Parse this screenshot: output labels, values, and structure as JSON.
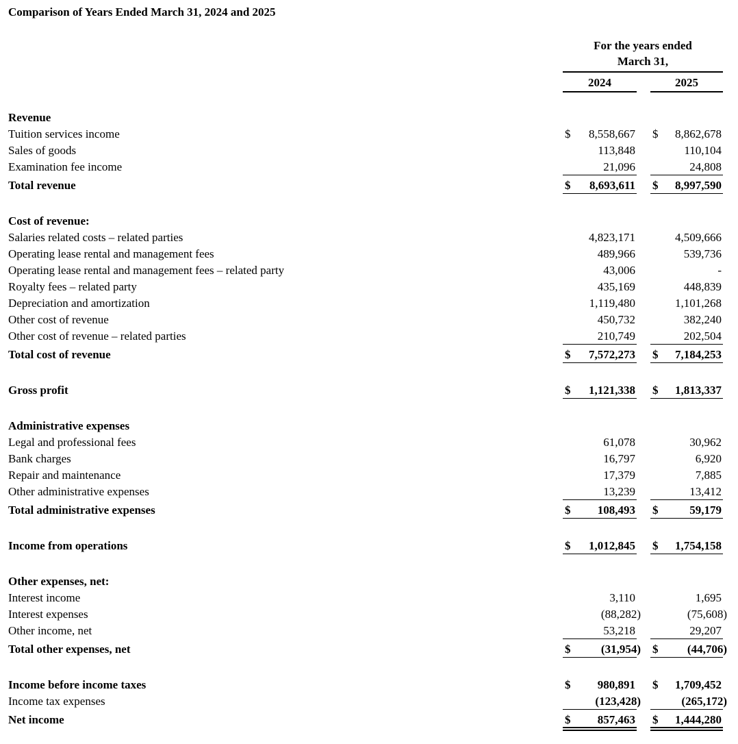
{
  "title": "Comparison of Years Ended March 31, 2024 and 2025",
  "header": {
    "period": [
      "For the years ended",
      "March 31,"
    ],
    "years": [
      "2024",
      "2025"
    ]
  },
  "currency": "$",
  "sections": [
    {
      "heading": "Revenue",
      "rows": [
        {
          "label": "Tuition services income",
          "values": [
            "8,558,667",
            "8,862,678"
          ],
          "currency": [
            true,
            true
          ]
        },
        {
          "label": "Sales of goods",
          "values": [
            "113,848",
            "110,104"
          ]
        },
        {
          "label": "Examination fee income",
          "values": [
            "21,096",
            "24,808"
          ],
          "underline": "single"
        },
        {
          "label": "Total revenue",
          "values": [
            "8,693,611",
            "8,997,590"
          ],
          "bold": true,
          "currency": [
            true,
            true
          ],
          "underline": "single"
        }
      ]
    },
    {
      "heading": "Cost of revenue:",
      "rows": [
        {
          "label": "Salaries related costs – related parties",
          "values": [
            "4,823,171",
            "4,509,666"
          ]
        },
        {
          "label": "Operating lease rental and management fees",
          "values": [
            "489,966",
            "539,736"
          ]
        },
        {
          "label": "Operating lease rental and management fees – related party",
          "values": [
            "43,006",
            "-"
          ]
        },
        {
          "label": "Royalty fees – related party",
          "values": [
            "435,169",
            "448,839"
          ]
        },
        {
          "label": "Depreciation and amortization",
          "values": [
            "1,119,480",
            "1,101,268"
          ]
        },
        {
          "label": "Other cost of revenue",
          "values": [
            "450,732",
            "382,240"
          ]
        },
        {
          "label": "Other cost of revenue – related parties",
          "values": [
            "210,749",
            "202,504"
          ],
          "underline": "single"
        },
        {
          "label": "Total cost of revenue",
          "values": [
            "7,572,273",
            "7,184,253"
          ],
          "bold": true,
          "currency": [
            true,
            true
          ],
          "underline": "single"
        }
      ]
    },
    {
      "rows": [
        {
          "label": "Gross profit",
          "values": [
            "1,121,338",
            "1,813,337"
          ],
          "bold": true,
          "currency": [
            true,
            true
          ],
          "underline": "single"
        }
      ]
    },
    {
      "heading": "Administrative expenses",
      "rows": [
        {
          "label": "Legal and professional fees",
          "values": [
            "61,078",
            "30,962"
          ]
        },
        {
          "label": "Bank charges",
          "values": [
            "16,797",
            "6,920"
          ]
        },
        {
          "label": "Repair and maintenance",
          "values": [
            "17,379",
            "7,885"
          ]
        },
        {
          "label": "Other administrative expenses",
          "values": [
            "13,239",
            "13,412"
          ],
          "underline": "single"
        },
        {
          "label": "Total administrative expenses",
          "values": [
            "108,493",
            "59,179"
          ],
          "bold": true,
          "currency": [
            true,
            true
          ],
          "underline": "single"
        }
      ]
    },
    {
      "rows": [
        {
          "label": "Income from operations",
          "values": [
            "1,012,845",
            "1,754,158"
          ],
          "bold": true,
          "currency": [
            true,
            true
          ],
          "underline": "single"
        }
      ]
    },
    {
      "heading": "Other expenses, net:",
      "rows": [
        {
          "label": "Interest income",
          "values": [
            "3,110",
            "1,695"
          ]
        },
        {
          "label": "Interest expenses",
          "values": [
            "(88,282)",
            "(75,608)"
          ]
        },
        {
          "label": "Other income, net",
          "values": [
            "53,218",
            "29,207"
          ],
          "underline": "single"
        },
        {
          "label": "Total other expenses, net",
          "values": [
            "(31,954)",
            "(44,706)"
          ],
          "bold": true,
          "currency": [
            true,
            true
          ],
          "underline": "single"
        }
      ]
    },
    {
      "rows": [
        {
          "label": "Income before income taxes",
          "values": [
            "980,891",
            "1,709,452"
          ],
          "bold": true,
          "currency": [
            true,
            true
          ]
        },
        {
          "label": "Income tax expenses",
          "values": [
            "(123,428)",
            "(265,172)"
          ],
          "bold_values": true,
          "underline": "single"
        },
        {
          "label": "Net income",
          "values": [
            "857,463",
            "1,444,280"
          ],
          "bold": true,
          "currency": [
            true,
            true
          ],
          "underline": "double"
        }
      ]
    }
  ]
}
